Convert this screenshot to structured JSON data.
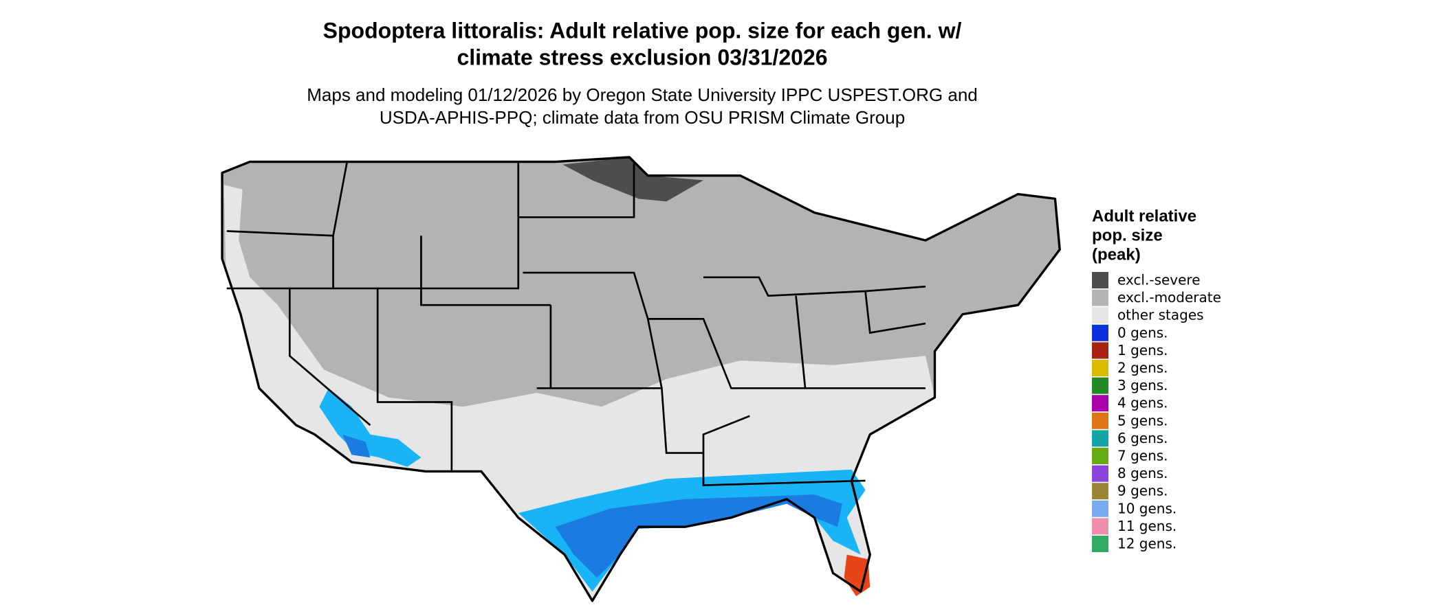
{
  "header": {
    "title": [
      "Spodoptera littoralis: Adult relative pop. size for each gen. w/",
      "climate stress exclusion 03/31/2026"
    ],
    "subtitle": [
      "Maps and modeling 01/12/2026 by Oregon State University IPPC USPEST.ORG and",
      "USDA-APHIS-PPQ; climate data from OSU PRISM Climate Group"
    ]
  },
  "legend": {
    "title": [
      "Adult relative",
      "pop. size",
      "(peak)"
    ],
    "items": [
      {
        "label": "excl.-severe",
        "color": "#4d4d4d"
      },
      {
        "label": "excl.-moderate",
        "color": "#b3b3b3"
      },
      {
        "label": "other stages",
        "color": "#e6e6e6"
      },
      {
        "label": "0 gens.",
        "color": "#0a33dd"
      },
      {
        "label": "1 gens.",
        "color": "#aa2211"
      },
      {
        "label": "2 gens.",
        "color": "#d9bb00"
      },
      {
        "label": "3 gens.",
        "color": "#228822"
      },
      {
        "label": "4 gens.",
        "color": "#aa00aa"
      },
      {
        "label": "5 gens.",
        "color": "#dd7711"
      },
      {
        "label": "6 gens.",
        "color": "#11a6a6"
      },
      {
        "label": "7 gens.",
        "color": "#66aa11"
      },
      {
        "label": "8 gens.",
        "color": "#8844dd"
      },
      {
        "label": "9 gens.",
        "color": "#998833"
      },
      {
        "label": "10 gens.",
        "color": "#77aaee"
      },
      {
        "label": "11 gens.",
        "color": "#ee8faa"
      },
      {
        "label": "12 gens.",
        "color": "#33aa66"
      }
    ]
  }
}
